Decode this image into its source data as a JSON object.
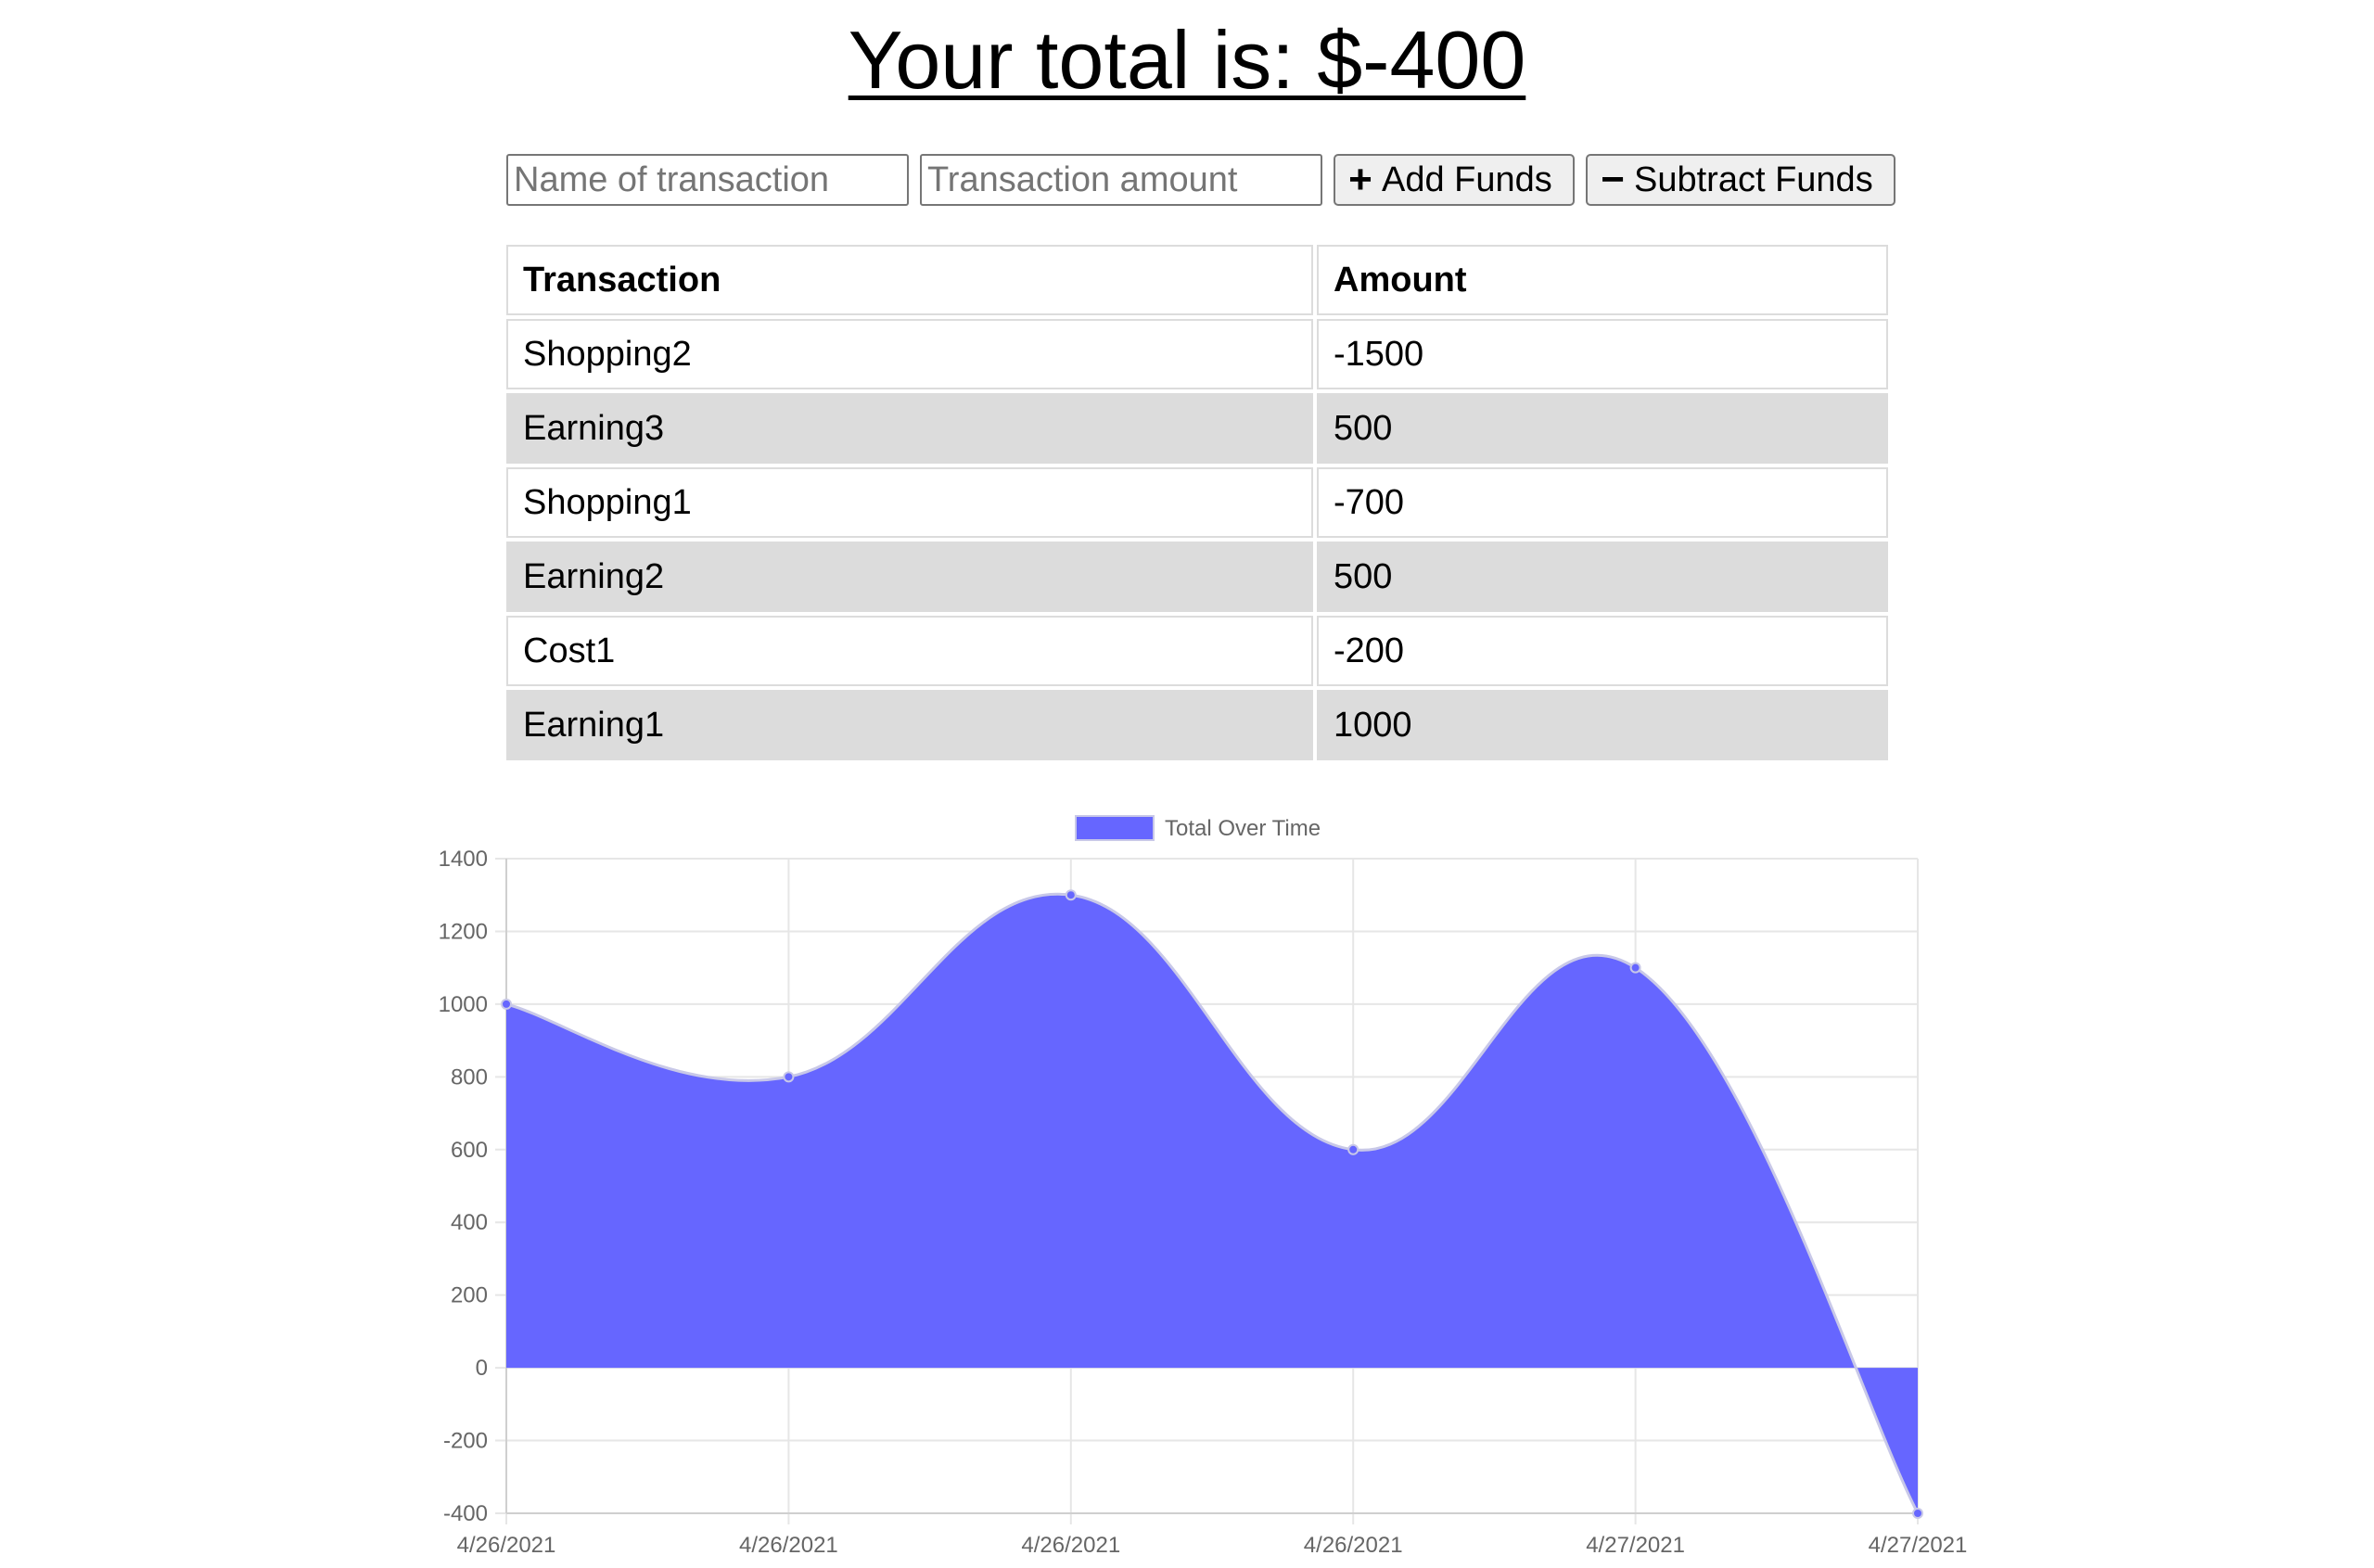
{
  "header": {
    "total_text": "Your total is: $-400"
  },
  "form": {
    "name_placeholder": "Name of transaction",
    "amount_placeholder": "Transaction amount",
    "add_label": "Add Funds",
    "subtract_label": "Subtract Funds",
    "add_icon": "plus-icon",
    "subtract_icon": "minus-icon"
  },
  "table": {
    "headers": [
      "Transaction",
      "Amount"
    ],
    "rows": [
      {
        "name": "Shopping2",
        "amount": "-1500"
      },
      {
        "name": "Earning3",
        "amount": "500"
      },
      {
        "name": "Shopping1",
        "amount": "-700"
      },
      {
        "name": "Earning2",
        "amount": "500"
      },
      {
        "name": "Cost1",
        "amount": "-200"
      },
      {
        "name": "Earning1",
        "amount": "1000"
      }
    ]
  },
  "chart_data": {
    "type": "area",
    "categories": [
      "4/26/2021",
      "4/26/2021",
      "4/26/2021",
      "4/26/2021",
      "4/27/2021",
      "4/27/2021"
    ],
    "series": [
      {
        "name": "Total Over Time",
        "values": [
          1000,
          800,
          1300,
          600,
          1100,
          -400
        ],
        "color": "#6666ff"
      }
    ],
    "yticks": [
      1400,
      1200,
      1000,
      800,
      600,
      400,
      200,
      0,
      -200,
      -400
    ],
    "ylim": [
      -400,
      1400
    ],
    "grid": true,
    "legend": "top-center",
    "colors": {
      "fill": "#6666ff",
      "line": "#c8c8e8",
      "grid": "#e6e6e6",
      "axis": "#666666"
    }
  }
}
